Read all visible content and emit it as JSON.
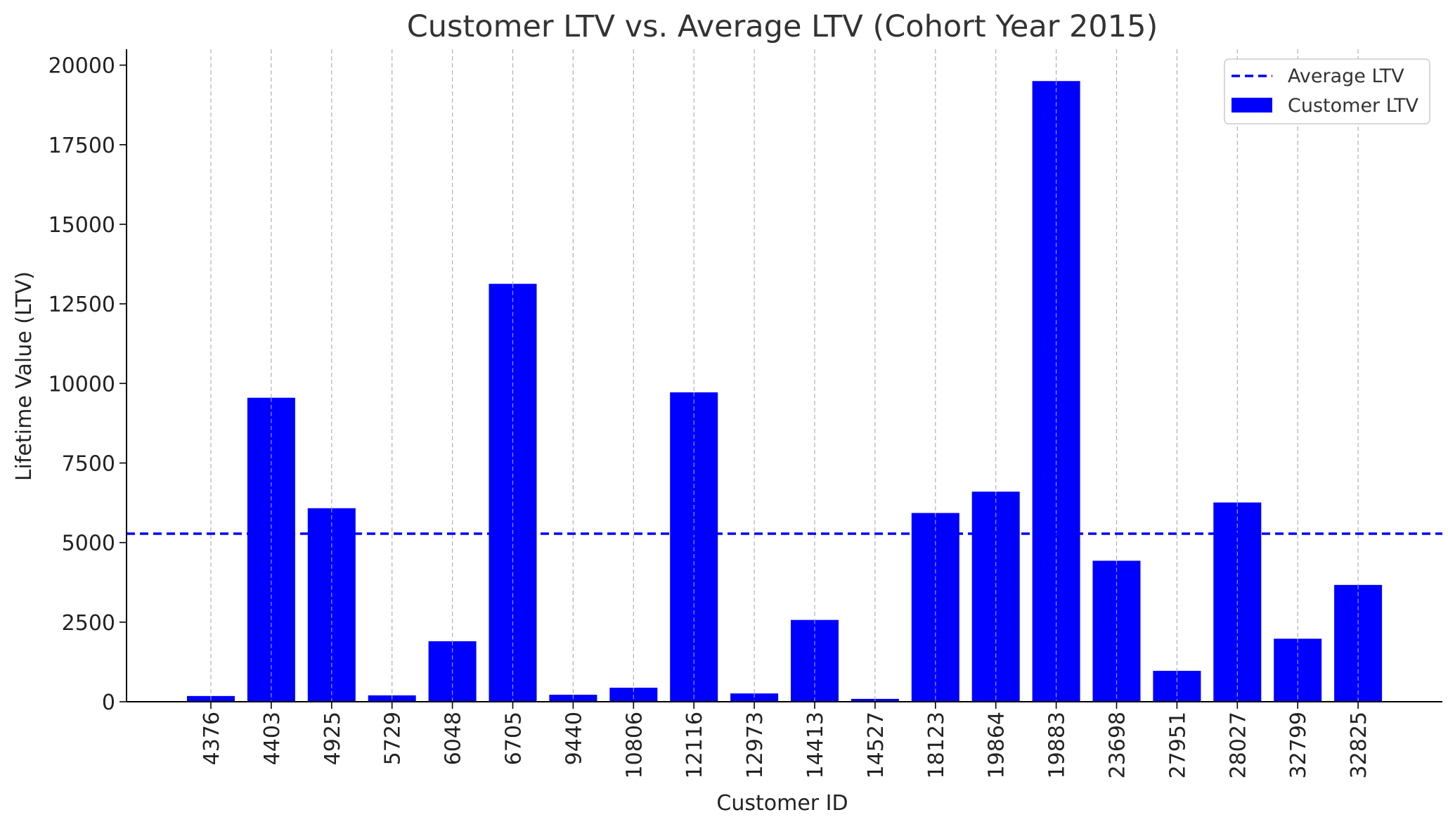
{
  "chart_data": {
    "type": "bar",
    "title": "Customer LTV vs. Average LTV (Cohort Year 2015)",
    "xlabel": "Customer ID",
    "ylabel": "Lifetime Value (LTV)",
    "categories": [
      "4376",
      "4403",
      "4925",
      "5729",
      "6048",
      "6705",
      "9440",
      "10806",
      "12116",
      "12973",
      "14413",
      "14527",
      "18123",
      "19864",
      "19883",
      "23698",
      "27951",
      "28027",
      "32799",
      "32825"
    ],
    "series": [
      {
        "name": "Customer LTV",
        "color": "#0000ff",
        "values": [
          180,
          9550,
          6080,
          200,
          1900,
          13130,
          220,
          440,
          9720,
          260,
          2570,
          90,
          5930,
          6600,
          19500,
          4430,
          970,
          6260,
          1980,
          3670
        ]
      }
    ],
    "average": {
      "name": "Average LTV",
      "value": 5280,
      "color": "#0000ff",
      "style": "dashed"
    },
    "ylim": [
      0,
      20500
    ],
    "yticks": [
      0,
      2500,
      5000,
      7500,
      10000,
      12500,
      15000,
      17500,
      20000
    ],
    "grid": "x-dashed",
    "legend_position": "top-right"
  }
}
